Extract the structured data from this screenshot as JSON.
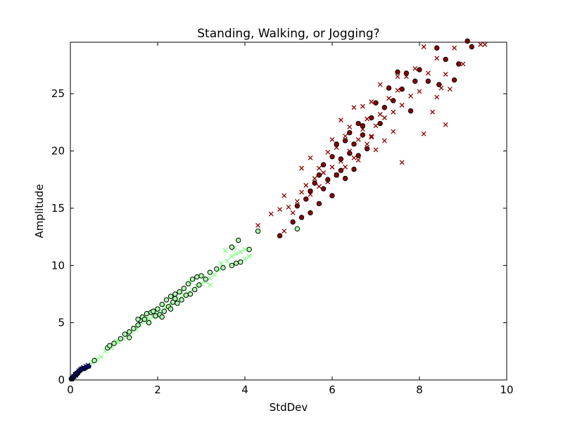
{
  "chart_data": {
    "type": "scatter",
    "title": "Standing, Walking, or Jogging?",
    "xlabel": "StdDev",
    "ylabel": "Amplitude",
    "xlim": [
      0,
      10
    ],
    "ylim": [
      0,
      29.5
    ],
    "xticks": [
      "0",
      "2",
      "4",
      "6",
      "8",
      "10"
    ],
    "yticks": [
      "0",
      "5",
      "10",
      "15",
      "20",
      "25"
    ],
    "grid": false,
    "legend": "none",
    "series": [
      {
        "class": "standing",
        "marker": "x",
        "color": "#000080",
        "points": [
          [
            0.03,
            0.1
          ],
          [
            0.05,
            0.2
          ],
          [
            0.07,
            0.3
          ],
          [
            0.09,
            0.3
          ],
          [
            0.11,
            0.5
          ],
          [
            0.13,
            0.4
          ],
          [
            0.15,
            0.6
          ],
          [
            0.17,
            0.6
          ],
          [
            0.2,
            0.8
          ],
          [
            0.23,
            0.9
          ],
          [
            0.26,
            1.0
          ],
          [
            0.3,
            1.1
          ],
          [
            0.35,
            1.2
          ],
          [
            0.4,
            1.3
          ]
        ]
      },
      {
        "class": "standing",
        "marker": "o",
        "color": "#000080",
        "points": [
          [
            0.02,
            0.1
          ],
          [
            0.04,
            0.1
          ],
          [
            0.06,
            0.2
          ],
          [
            0.08,
            0.3
          ],
          [
            0.1,
            0.4
          ],
          [
            0.12,
            0.5
          ],
          [
            0.14,
            0.5
          ],
          [
            0.16,
            0.6
          ],
          [
            0.18,
            0.7
          ],
          [
            0.21,
            0.8
          ],
          [
            0.24,
            0.9
          ],
          [
            0.28,
            1.0
          ],
          [
            0.32,
            1.0
          ],
          [
            0.36,
            1.1
          ],
          [
            0.42,
            1.2
          ]
        ]
      },
      {
        "class": "walking",
        "marker": "x",
        "color": "#7fff7f",
        "points": [
          [
            0.5,
            1.5
          ],
          [
            0.6,
            1.8
          ],
          [
            0.7,
            2.0
          ],
          [
            0.8,
            2.5
          ],
          [
            0.95,
            2.8
          ],
          [
            1.1,
            3.3
          ],
          [
            1.2,
            3.6
          ],
          [
            1.3,
            3.9
          ],
          [
            1.4,
            4.2
          ],
          [
            1.5,
            4.4
          ],
          [
            1.6,
            4.8
          ],
          [
            1.7,
            5.1
          ],
          [
            1.8,
            5.3
          ],
          [
            1.9,
            5.5
          ],
          [
            2.0,
            5.8
          ],
          [
            2.1,
            6.0
          ],
          [
            2.2,
            6.3
          ],
          [
            2.3,
            6.6
          ],
          [
            2.4,
            6.9
          ],
          [
            2.5,
            7.1
          ],
          [
            2.6,
            7.4
          ],
          [
            2.7,
            7.6
          ],
          [
            2.8,
            7.9
          ],
          [
            2.9,
            8.2
          ],
          [
            3.0,
            8.4
          ],
          [
            3.1,
            8.6
          ],
          [
            3.2,
            8.9
          ],
          [
            3.3,
            9.2
          ],
          [
            3.4,
            9.6
          ],
          [
            3.5,
            9.9
          ],
          [
            3.6,
            10.4
          ],
          [
            3.7,
            10.8
          ],
          [
            3.8,
            11.0
          ],
          [
            3.9,
            11.2
          ],
          [
            4.0,
            11.4
          ],
          [
            4.1,
            10.8
          ],
          [
            3.55,
            11.3
          ],
          [
            3.75,
            11.5
          ],
          [
            3.45,
            10.2
          ],
          [
            2.75,
            8.6
          ],
          [
            3.05,
            9.0
          ],
          [
            2.35,
            7.3
          ],
          [
            1.95,
            6.1
          ],
          [
            1.45,
            4.6
          ],
          [
            1.05,
            3.4
          ],
          [
            4.0,
            10.6
          ],
          [
            3.2,
            8.3
          ],
          [
            2.55,
            7.6
          ],
          [
            2.15,
            6.5
          ],
          [
            1.75,
            5.4
          ]
        ]
      },
      {
        "class": "walking",
        "marker": "o",
        "color": "#afffaf",
        "points": [
          [
            0.55,
            1.7
          ],
          [
            0.85,
            2.8
          ],
          [
            0.9,
            3.0
          ],
          [
            1.0,
            3.2
          ],
          [
            1.15,
            3.6
          ],
          [
            1.25,
            4.0
          ],
          [
            1.35,
            4.2
          ],
          [
            1.45,
            4.5
          ],
          [
            1.55,
            4.8
          ],
          [
            1.6,
            5.2
          ],
          [
            1.65,
            5.5
          ],
          [
            1.75,
            5.8
          ],
          [
            1.8,
            5.0
          ],
          [
            1.85,
            5.9
          ],
          [
            1.9,
            6.0
          ],
          [
            1.95,
            5.6
          ],
          [
            2.0,
            6.2
          ],
          [
            2.05,
            5.7
          ],
          [
            2.1,
            6.6
          ],
          [
            2.15,
            6.0
          ],
          [
            2.2,
            7.0
          ],
          [
            2.25,
            6.4
          ],
          [
            2.3,
            7.3
          ],
          [
            2.35,
            6.8
          ],
          [
            2.4,
            7.5
          ],
          [
            2.45,
            6.7
          ],
          [
            2.5,
            7.7
          ],
          [
            2.55,
            7.0
          ],
          [
            2.6,
            8.0
          ],
          [
            2.65,
            7.4
          ],
          [
            2.7,
            8.4
          ],
          [
            2.75,
            7.5
          ],
          [
            2.8,
            8.8
          ],
          [
            2.85,
            7.9
          ],
          [
            2.9,
            9.0
          ],
          [
            2.95,
            8.3
          ],
          [
            3.0,
            9.1
          ],
          [
            3.1,
            8.8
          ],
          [
            3.2,
            9.4
          ],
          [
            3.35,
            9.7
          ],
          [
            3.5,
            9.8
          ],
          [
            3.7,
            10.0
          ],
          [
            3.8,
            10.2
          ],
          [
            3.9,
            10.3
          ],
          [
            3.85,
            12.2
          ],
          [
            4.1,
            11.4
          ],
          [
            3.7,
            11.6
          ],
          [
            4.3,
            13.0
          ],
          [
            5.2,
            13.2
          ],
          [
            1.55,
            5.3
          ],
          [
            1.7,
            5.3
          ],
          [
            2.1,
            5.5
          ],
          [
            2.3,
            6.2
          ],
          [
            2.4,
            7.1
          ],
          [
            1.35,
            3.7
          ]
        ]
      },
      {
        "class": "jogging",
        "marker": "x",
        "color": "#8b0000",
        "points": [
          [
            4.3,
            13.5
          ],
          [
            4.6,
            14.5
          ],
          [
            4.8,
            14.9
          ],
          [
            4.9,
            13.0
          ],
          [
            4.9,
            16.1
          ],
          [
            5.0,
            15.1
          ],
          [
            5.1,
            14.6
          ],
          [
            5.2,
            15.6
          ],
          [
            5.3,
            16.4
          ],
          [
            5.3,
            18.5
          ],
          [
            5.4,
            17.0
          ],
          [
            5.5,
            16.2
          ],
          [
            5.5,
            19.4
          ],
          [
            5.6,
            17.6
          ],
          [
            5.7,
            16.9
          ],
          [
            5.7,
            18.5
          ],
          [
            5.8,
            18.1
          ],
          [
            5.9,
            17.3
          ],
          [
            5.9,
            19.9
          ],
          [
            6.0,
            18.6
          ],
          [
            6.0,
            21.0
          ],
          [
            6.1,
            17.9
          ],
          [
            6.1,
            20.3
          ],
          [
            6.2,
            19.1
          ],
          [
            6.2,
            22.7
          ],
          [
            6.3,
            18.6
          ],
          [
            6.3,
            21.3
          ],
          [
            6.4,
            20.0
          ],
          [
            6.4,
            22.1
          ],
          [
            6.5,
            19.4
          ],
          [
            6.5,
            23.8
          ],
          [
            6.6,
            21.0
          ],
          [
            6.6,
            19.2
          ],
          [
            6.7,
            21.9
          ],
          [
            6.7,
            23.9
          ],
          [
            6.8,
            20.6
          ],
          [
            6.8,
            22.8
          ],
          [
            6.9,
            21.3
          ],
          [
            6.9,
            24.3
          ],
          [
            7.0,
            22.2
          ],
          [
            7.0,
            20.1
          ],
          [
            7.1,
            23.2
          ],
          [
            7.1,
            25.8
          ],
          [
            7.2,
            22.9
          ],
          [
            7.2,
            20.9
          ],
          [
            7.3,
            24.6
          ],
          [
            7.4,
            23.4
          ],
          [
            7.4,
            21.7
          ],
          [
            7.5,
            25.3
          ],
          [
            7.6,
            24.0
          ],
          [
            7.7,
            26.5
          ],
          [
            7.8,
            24.8
          ],
          [
            7.9,
            27.2
          ],
          [
            8.0,
            25.2
          ],
          [
            8.1,
            21.5
          ],
          [
            8.2,
            26.8
          ],
          [
            8.3,
            23.4
          ],
          [
            8.4,
            28.1
          ],
          [
            8.5,
            25.5
          ],
          [
            8.6,
            26.7
          ],
          [
            8.7,
            25.4
          ],
          [
            8.8,
            29.0
          ],
          [
            9.0,
            27.6
          ],
          [
            9.4,
            29.3
          ],
          [
            9.5,
            29.3
          ],
          [
            8.1,
            29.1
          ],
          [
            8.4,
            24.7
          ],
          [
            8.6,
            22.3
          ],
          [
            7.6,
            19.0
          ],
          [
            7.5,
            26.5
          ],
          [
            6.9,
            21.2
          ]
        ]
      },
      {
        "class": "jogging",
        "marker": "o",
        "color": "#8b0000",
        "points": [
          [
            4.8,
            12.6
          ],
          [
            5.1,
            13.8
          ],
          [
            5.2,
            15.2
          ],
          [
            5.3,
            14.2
          ],
          [
            5.4,
            15.8
          ],
          [
            5.5,
            16.5
          ],
          [
            5.5,
            14.6
          ],
          [
            5.6,
            17.2
          ],
          [
            5.7,
            17.9
          ],
          [
            5.7,
            15.4
          ],
          [
            5.8,
            16.7
          ],
          [
            5.8,
            18.8
          ],
          [
            5.9,
            17.5
          ],
          [
            6.0,
            16.1
          ],
          [
            6.0,
            19.5
          ],
          [
            6.1,
            17.9
          ],
          [
            6.1,
            20.6
          ],
          [
            6.2,
            18.3
          ],
          [
            6.3,
            20.9
          ],
          [
            6.3,
            17.6
          ],
          [
            6.4,
            19.8
          ],
          [
            6.4,
            21.6
          ],
          [
            6.5,
            18.4
          ],
          [
            6.5,
            20.6
          ],
          [
            6.6,
            22.4
          ],
          [
            6.6,
            19.6
          ],
          [
            6.7,
            21.4
          ],
          [
            6.7,
            22.2
          ],
          [
            6.8,
            20.2
          ],
          [
            6.9,
            22.9
          ],
          [
            7.0,
            24.2
          ],
          [
            7.1,
            22.4
          ],
          [
            7.2,
            23.8
          ],
          [
            7.3,
            25.5
          ],
          [
            7.4,
            24.4
          ],
          [
            7.5,
            26.9
          ],
          [
            7.6,
            25.4
          ],
          [
            7.7,
            26.8
          ],
          [
            7.8,
            23.5
          ],
          [
            8.0,
            27.1
          ],
          [
            8.2,
            26.1
          ],
          [
            8.4,
            29.0
          ],
          [
            8.6,
            28.0
          ],
          [
            8.8,
            26.2
          ],
          [
            8.9,
            27.6
          ],
          [
            9.1,
            29.6
          ],
          [
            9.2,
            29.1
          ],
          [
            8.45,
            25.8
          ],
          [
            7.9,
            26.1
          ],
          [
            6.2,
            19.3
          ]
        ]
      }
    ]
  }
}
